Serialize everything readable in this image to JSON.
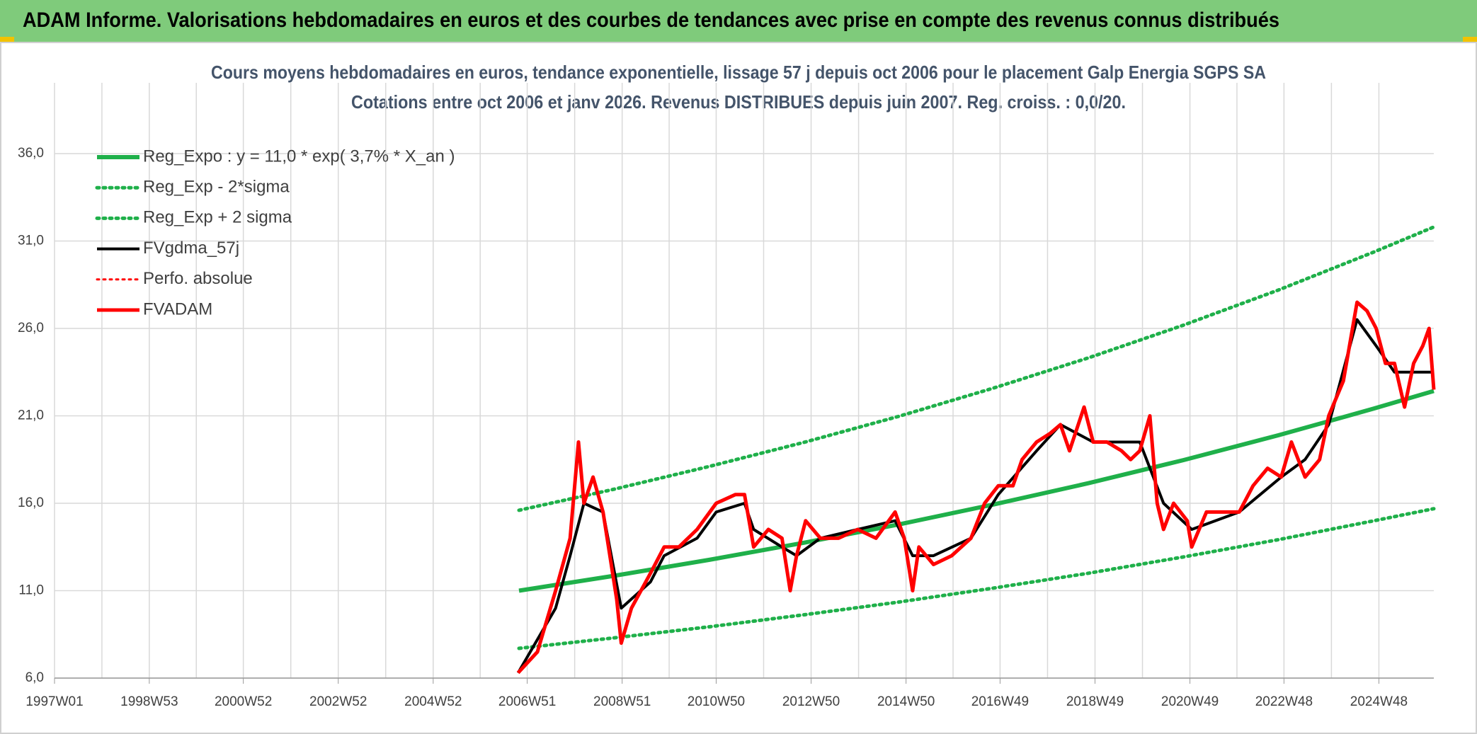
{
  "header": "ADAM Informe. Valorisations hebdomadaires en euros et des courbes de tendances avec prise en compte des revenus connus distribués",
  "chart_data": {
    "type": "line",
    "title": "Cours moyens hebdomadaires en euros, tendance exponentielle, lissage 57 j depuis oct 2006 pour le placement Galp Energia SGPS SA",
    "subtitle": "Cotations entre oct 2006 et janv 2026. Revenus DISTRIBUES depuis juin 2007. Reg. croiss. : 0,0/20.",
    "xlim": [
      "1997W01",
      "2026W04"
    ],
    "xticks": [
      "1997W01",
      "1998W53",
      "2000W52",
      "2002W52",
      "2004W52",
      "2006W51",
      "2008W51",
      "2010W50",
      "2012W50",
      "2014W50",
      "2016W49",
      "2018W49",
      "2020W49",
      "2022W48",
      "2024W48"
    ],
    "ylim": [
      6,
      36
    ],
    "yticks": [
      {
        "value": 6,
        "label": "6,0"
      },
      {
        "value": 11,
        "label": "11,0"
      },
      {
        "value": 16,
        "label": "16,0"
      },
      {
        "value": 21,
        "label": "21,0"
      },
      {
        "value": 26,
        "label": "26,0"
      },
      {
        "value": 31,
        "label": "31,0"
      },
      {
        "value": 36,
        "label": "36,0"
      }
    ],
    "grid": true,
    "legend": "top-left",
    "series": [
      {
        "name": "Reg_Expo : y = 11,0 * exp( 3,7% *  X_an )",
        "color": "#1fb04a",
        "style": "solid",
        "width": 6,
        "x": [
          "2006W42",
          "2008W42",
          "2010W42",
          "2012W42",
          "2014W42",
          "2016W42",
          "2018W42",
          "2020W42",
          "2022W42",
          "2024W42",
          "2026W04"
        ],
        "values": [
          11.0,
          11.85,
          12.76,
          13.74,
          14.79,
          15.93,
          17.15,
          18.47,
          19.89,
          21.41,
          22.42
        ]
      },
      {
        "name": "Reg_Exp - 2*sigma",
        "color": "#1fb04a",
        "style": "dotted",
        "width": 5,
        "x": [
          "2006W42",
          "2008W42",
          "2010W42",
          "2012W42",
          "2014W42",
          "2016W42",
          "2018W42",
          "2020W42",
          "2022W42",
          "2024W42",
          "2026W04"
        ],
        "values": [
          7.7,
          8.3,
          8.93,
          9.62,
          10.35,
          11.15,
          12.0,
          12.93,
          13.92,
          14.99,
          15.69
        ]
      },
      {
        "name": "Reg_Exp + 2 sigma",
        "color": "#1fb04a",
        "style": "dotted",
        "width": 5,
        "x": [
          "2006W42",
          "2008W42",
          "2010W42",
          "2012W42",
          "2014W42",
          "2016W42",
          "2018W42",
          "2020W42",
          "2022W42",
          "2024W42",
          "2026W04"
        ],
        "values": [
          15.6,
          16.8,
          18.1,
          19.48,
          20.97,
          22.59,
          24.32,
          26.19,
          28.2,
          30.36,
          31.8
        ]
      },
      {
        "name": "FVgdma_57j",
        "color": "#000000",
        "style": "solid",
        "width": 4,
        "x": [
          "2006W41",
          "2007W30",
          "2007W46",
          "2008W09",
          "2008W30",
          "2008W50",
          "2009W30",
          "2009W45",
          "2010W29",
          "2010W50",
          "2011W29",
          "2011W39",
          "2012W18",
          "2012W34",
          "2013W08",
          "2013W49",
          "2014W38",
          "2015W05",
          "2015W28",
          "2016W17",
          "2016W47",
          "2017W37",
          "2018W11",
          "2018W47",
          "2019W46",
          "2020W20",
          "2020W51",
          "2021W51",
          "2022W45",
          "2023W19",
          "2023W45",
          "2024W24",
          "2024W45",
          "2025W13",
          "2025W34",
          "2026W04"
        ],
        "values": [
          6.3,
          10,
          13,
          16,
          15.5,
          10,
          11.5,
          13,
          14,
          15.5,
          16,
          14.5,
          13.5,
          13,
          14,
          14.5,
          15,
          13,
          13,
          14,
          16.5,
          19,
          20.5,
          19.5,
          19.5,
          16,
          14.5,
          15.5,
          17.5,
          18.5,
          20.5,
          26.5,
          25,
          23.5,
          23.5,
          23.5
        ]
      },
      {
        "name": "Perfo. absolue",
        "color": "#ff0000",
        "style": "dotted",
        "width": 3,
        "x": [],
        "values": []
      },
      {
        "name": "FVADAM",
        "color": "#ff0000",
        "style": "solid",
        "width": 5,
        "x": [
          "2006W41",
          "2007W10",
          "2007W30",
          "2007W46",
          "2008W03",
          "2008W09",
          "2008W19",
          "2008W30",
          "2008W45",
          "2008W50",
          "2009W09",
          "2009W30",
          "2009W45",
          "2010W09",
          "2010W29",
          "2010W50",
          "2011W19",
          "2011W29",
          "2011W39",
          "2012W03",
          "2012W18",
          "2012W27",
          "2012W34",
          "2012W44",
          "2013W08",
          "2013W28",
          "2013W49",
          "2014W17",
          "2014W38",
          "2014W48",
          "2015W05",
          "2015W12",
          "2015W28",
          "2015W48",
          "2016W17",
          "2016W32",
          "2016W47",
          "2017W11",
          "2017W21",
          "2017W37",
          "2017W52",
          "2018W11",
          "2018W21",
          "2018W37",
          "2018W47",
          "2019W10",
          "2019W26",
          "2019W36",
          "2019W46",
          "2020W05",
          "2020W13",
          "2020W20",
          "2020W31",
          "2020W46",
          "2020W51",
          "2021W15",
          "2021W35",
          "2021W51",
          "2022W14",
          "2022W30",
          "2022W45",
          "2023W04",
          "2023W19",
          "2023W35",
          "2023W45",
          "2024W09",
          "2024W24",
          "2024W35",
          "2024W45",
          "2025W03",
          "2025W13",
          "2025W24",
          "2025W34",
          "2025W44",
          "2025W51",
          "2026W04"
        ],
        "values": [
          6.3,
          7.5,
          11.0,
          14,
          19.5,
          16,
          17.5,
          15.5,
          10.5,
          8,
          10,
          12,
          13.5,
          13.5,
          14.5,
          16,
          16.5,
          16.5,
          13.5,
          14.5,
          14,
          11,
          13,
          15,
          14,
          14,
          14.5,
          14,
          15.5,
          14,
          11,
          13.5,
          12.5,
          13,
          14,
          16,
          17,
          17,
          18.5,
          19.5,
          20,
          20.5,
          19,
          21.5,
          19.5,
          19.5,
          19,
          18.5,
          19,
          21,
          16,
          14.5,
          16,
          15,
          13.5,
          15.5,
          15.5,
          15.5,
          17,
          18,
          17.5,
          19.5,
          17.5,
          18.5,
          21,
          23,
          27.5,
          27,
          26,
          24,
          24,
          21.5,
          24,
          25,
          26,
          22.5
        ]
      }
    ]
  }
}
